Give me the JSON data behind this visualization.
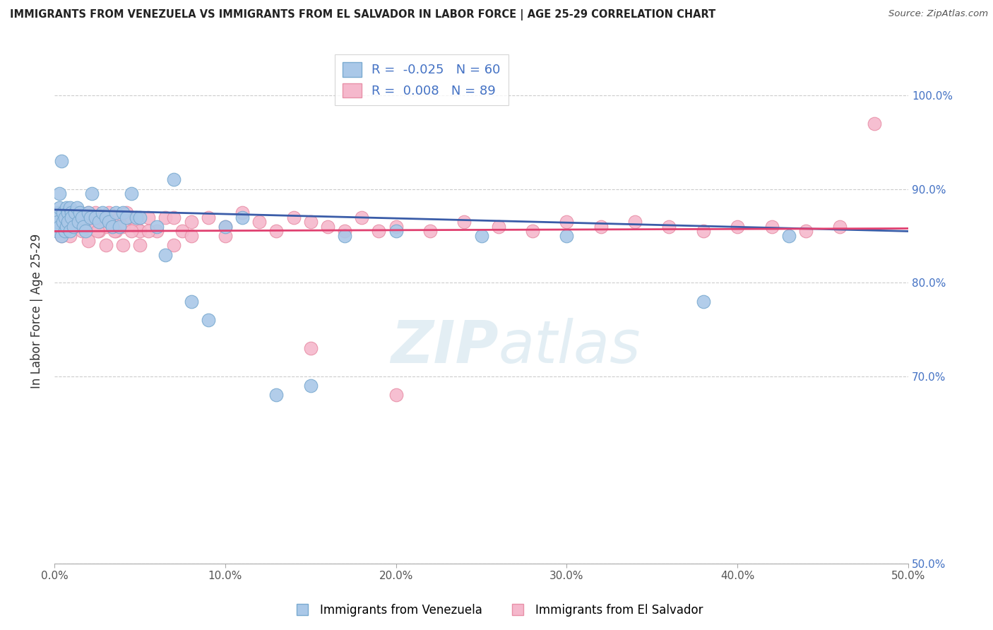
{
  "title": "IMMIGRANTS FROM VENEZUELA VS IMMIGRANTS FROM EL SALVADOR IN LABOR FORCE | AGE 25-29 CORRELATION CHART",
  "source": "Source: ZipAtlas.com",
  "ylabel": "In Labor Force | Age 25-29",
  "y_ticks": [
    0.5,
    0.7,
    0.8,
    0.9,
    1.0
  ],
  "y_tick_labels": [
    "50.0%",
    "70.0%",
    "80.0%",
    "90.0%",
    "100.0%"
  ],
  "x_min": 0.0,
  "x_max": 0.5,
  "y_min": 0.5,
  "y_max": 1.04,
  "venezuela_color": "#aac8e8",
  "venezuela_edge": "#7aaad0",
  "el_salvador_color": "#f5b8cc",
  "el_salvador_edge": "#e890a8",
  "trend_venezuela": "#3a5ca8",
  "trend_el_salvador": "#e04070",
  "R_venezuela": -0.025,
  "N_venezuela": 60,
  "R_el_salvador": 0.008,
  "N_el_salvador": 89,
  "background_color": "#ffffff",
  "grid_color": "#cccccc",
  "venezuela_trend_x": [
    0.0,
    0.5
  ],
  "venezuela_trend_y": [
    0.878,
    0.855
  ],
  "el_salvador_trend_x": [
    0.0,
    0.5
  ],
  "el_salvador_trend_y": [
    0.855,
    0.858
  ],
  "venezuela_points_x": [
    0.001,
    0.001,
    0.002,
    0.002,
    0.003,
    0.003,
    0.003,
    0.004,
    0.004,
    0.005,
    0.005,
    0.006,
    0.006,
    0.007,
    0.007,
    0.008,
    0.008,
    0.009,
    0.009,
    0.01,
    0.01,
    0.011,
    0.012,
    0.013,
    0.014,
    0.015,
    0.016,
    0.017,
    0.018,
    0.02,
    0.021,
    0.022,
    0.024,
    0.026,
    0.028,
    0.03,
    0.032,
    0.034,
    0.036,
    0.038,
    0.04,
    0.042,
    0.045,
    0.048,
    0.05,
    0.06,
    0.065,
    0.07,
    0.08,
    0.09,
    0.1,
    0.11,
    0.13,
    0.15,
    0.17,
    0.2,
    0.25,
    0.3,
    0.38,
    0.43
  ],
  "venezuela_points_y": [
    0.855,
    0.87,
    0.875,
    0.865,
    0.88,
    0.895,
    0.86,
    0.93,
    0.85,
    0.875,
    0.865,
    0.87,
    0.855,
    0.88,
    0.86,
    0.875,
    0.865,
    0.88,
    0.855,
    0.875,
    0.87,
    0.86,
    0.875,
    0.88,
    0.865,
    0.875,
    0.87,
    0.86,
    0.855,
    0.875,
    0.87,
    0.895,
    0.87,
    0.865,
    0.875,
    0.87,
    0.865,
    0.86,
    0.875,
    0.86,
    0.875,
    0.87,
    0.895,
    0.87,
    0.87,
    0.86,
    0.83,
    0.91,
    0.78,
    0.76,
    0.86,
    0.87,
    0.68,
    0.69,
    0.85,
    0.855,
    0.85,
    0.85,
    0.78,
    0.85
  ],
  "el_salvador_points_x": [
    0.001,
    0.001,
    0.002,
    0.002,
    0.003,
    0.003,
    0.004,
    0.004,
    0.005,
    0.005,
    0.006,
    0.006,
    0.007,
    0.007,
    0.008,
    0.008,
    0.009,
    0.009,
    0.01,
    0.01,
    0.011,
    0.012,
    0.013,
    0.014,
    0.015,
    0.016,
    0.017,
    0.018,
    0.019,
    0.02,
    0.022,
    0.024,
    0.026,
    0.028,
    0.03,
    0.032,
    0.034,
    0.036,
    0.038,
    0.04,
    0.042,
    0.045,
    0.048,
    0.05,
    0.055,
    0.06,
    0.065,
    0.07,
    0.075,
    0.08,
    0.09,
    0.1,
    0.11,
    0.12,
    0.13,
    0.14,
    0.15,
    0.16,
    0.17,
    0.18,
    0.19,
    0.2,
    0.22,
    0.24,
    0.26,
    0.28,
    0.3,
    0.32,
    0.34,
    0.36,
    0.38,
    0.4,
    0.42,
    0.44,
    0.46,
    0.05,
    0.1,
    0.15,
    0.2,
    0.03,
    0.04,
    0.07,
    0.08,
    0.02,
    0.025,
    0.035,
    0.045,
    0.055,
    0.48
  ],
  "el_salvador_points_y": [
    0.855,
    0.865,
    0.87,
    0.855,
    0.875,
    0.86,
    0.85,
    0.875,
    0.865,
    0.86,
    0.855,
    0.875,
    0.87,
    0.86,
    0.875,
    0.865,
    0.85,
    0.87,
    0.86,
    0.875,
    0.865,
    0.87,
    0.86,
    0.875,
    0.865,
    0.855,
    0.87,
    0.865,
    0.86,
    0.875,
    0.865,
    0.875,
    0.855,
    0.87,
    0.86,
    0.875,
    0.865,
    0.855,
    0.87,
    0.86,
    0.875,
    0.87,
    0.86,
    0.855,
    0.87,
    0.855,
    0.87,
    0.87,
    0.855,
    0.865,
    0.87,
    0.86,
    0.875,
    0.865,
    0.855,
    0.87,
    0.865,
    0.86,
    0.855,
    0.87,
    0.855,
    0.86,
    0.855,
    0.865,
    0.86,
    0.855,
    0.865,
    0.86,
    0.865,
    0.86,
    0.855,
    0.86,
    0.86,
    0.855,
    0.86,
    0.84,
    0.85,
    0.73,
    0.68,
    0.84,
    0.84,
    0.84,
    0.85,
    0.845,
    0.855,
    0.855,
    0.855,
    0.855,
    0.97
  ]
}
